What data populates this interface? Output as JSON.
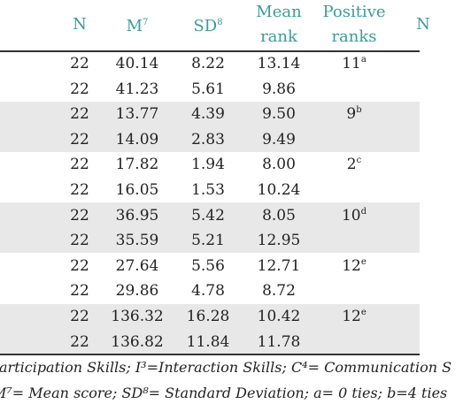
{
  "table": {
    "header": [
      {
        "text": "N"
      },
      {
        "text": "M",
        "sup": "7"
      },
      {
        "text": "SD",
        "sup": "8"
      },
      {
        "text": "Mean rank"
      },
      {
        "text": "Positive ranks"
      },
      {
        "text": "N"
      }
    ],
    "rows": [
      [
        "22",
        "40.14",
        "8.22",
        "13.14",
        {
          "text": "11",
          "sup": "a"
        }
      ],
      [
        "22",
        "41.23",
        "5.61",
        "9.86"
      ],
      [
        "22",
        "13.77",
        "4.39",
        "9.50",
        {
          "text": "9",
          "sup": "b"
        }
      ],
      [
        "22",
        "14.09",
        "2.83",
        "9.49"
      ],
      [
        "22",
        "17.82",
        "1.94",
        "8.00",
        {
          "text": "2",
          "sup": "c"
        }
      ],
      [
        "22",
        "16.05",
        "1.53",
        "10.24"
      ],
      [
        "22",
        "36.95",
        "5.42",
        "8.05",
        {
          "text": "10",
          "sup": "d"
        }
      ],
      [
        "22",
        "35.59",
        "5.21",
        "12.95"
      ],
      [
        "22",
        "27.64",
        "5.56",
        "12.71",
        {
          "text": "12",
          "sup": "e"
        }
      ],
      [
        "22",
        "29.86",
        "4.78",
        "8.72"
      ],
      [
        "22",
        "136.32",
        "16.28",
        "10.42",
        {
          "text": "12",
          "sup": "e"
        }
      ],
      [
        "22",
        "136.82",
        "11.84",
        "11.78"
      ]
    ],
    "footnotes": [
      "articipation Skills; I³=Interaction Skills; C⁴= Communication S",
      "M⁷= Mean score; SD⁸= Standard Deviation; a= 0 ties; b=4 ties"
    ]
  }
}
